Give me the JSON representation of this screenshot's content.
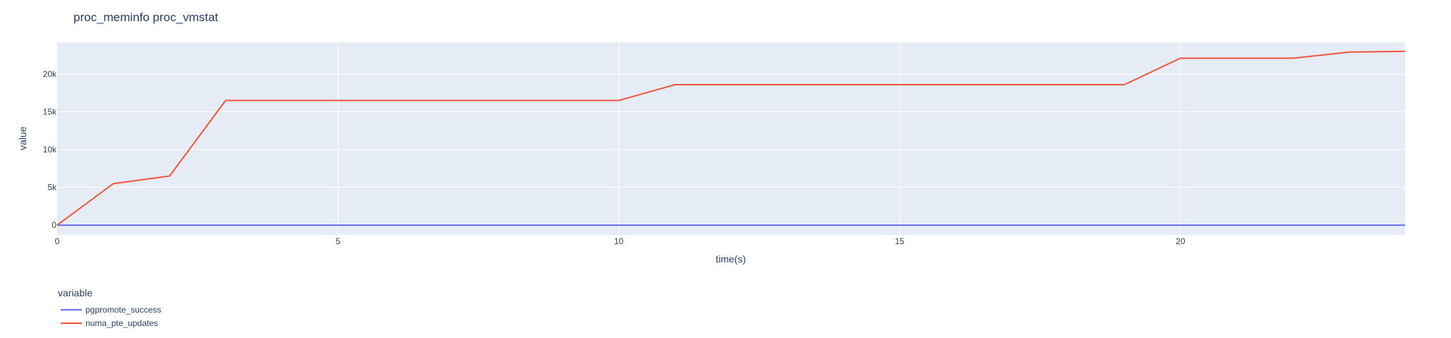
{
  "chart_data": {
    "type": "line",
    "title": "proc_meminfo proc_vmstat",
    "xlabel": "time(s)",
    "ylabel": "value",
    "xlim": [
      0,
      24
    ],
    "ylim": [
      -1300,
      24200
    ],
    "x_ticks": [
      0,
      5,
      10,
      15,
      20
    ],
    "y_ticks": [
      0,
      5000,
      10000,
      15000,
      20000
    ],
    "y_tick_labels": [
      "0",
      "5k",
      "10k",
      "15k",
      "20k"
    ],
    "grid": true,
    "legend": {
      "title": "variable",
      "placement": "bottom-left"
    },
    "plot_bg": "#e5ecf6",
    "series": [
      {
        "name": "pgpromote_success",
        "color": "#636efa",
        "x": [
          0,
          24
        ],
        "values": [
          0,
          0
        ]
      },
      {
        "name": "numa_pte_updates",
        "color": "#ef553b",
        "x": [
          0,
          1,
          2,
          3,
          10,
          11,
          19,
          20,
          22,
          23,
          24
        ],
        "values": [
          0,
          5500,
          6500,
          16500,
          16500,
          18600,
          18600,
          22100,
          22100,
          22900,
          23000
        ]
      }
    ]
  }
}
